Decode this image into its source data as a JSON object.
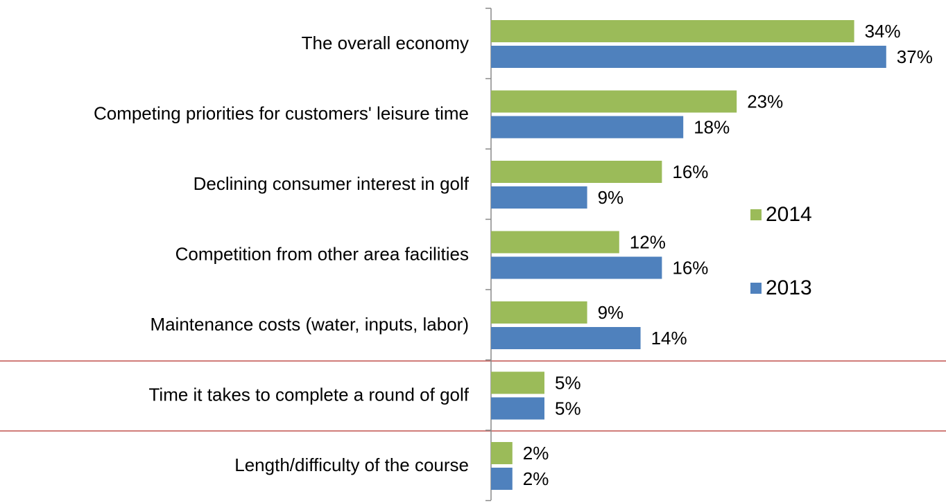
{
  "chart_data": {
    "type": "bar",
    "orientation": "horizontal",
    "categories": [
      "The overall economy",
      "Competing priorities for customers' leisure time",
      "Declining consumer interest in golf",
      "Competition from other area facilities",
      "Maintenance costs (water, inputs, labor)",
      "Time it takes to complete a round of golf",
      "Length/difficulty of the course"
    ],
    "series": [
      {
        "name": "2014",
        "color": "#9bbb59",
        "values": [
          34,
          23,
          16,
          12,
          9,
          5,
          2
        ],
        "value_labels": [
          "34%",
          "23%",
          "16%",
          "12%",
          "9%",
          "5%",
          "2%"
        ]
      },
      {
        "name": "2013",
        "color": "#4f81bd",
        "values": [
          37,
          18,
          9,
          16,
          14,
          5,
          2
        ],
        "value_labels": [
          "37%",
          "18%",
          "9%",
          "16%",
          "14%",
          "5%",
          "2%"
        ]
      }
    ],
    "xlim": [
      0,
      40
    ],
    "legend": "right"
  }
}
